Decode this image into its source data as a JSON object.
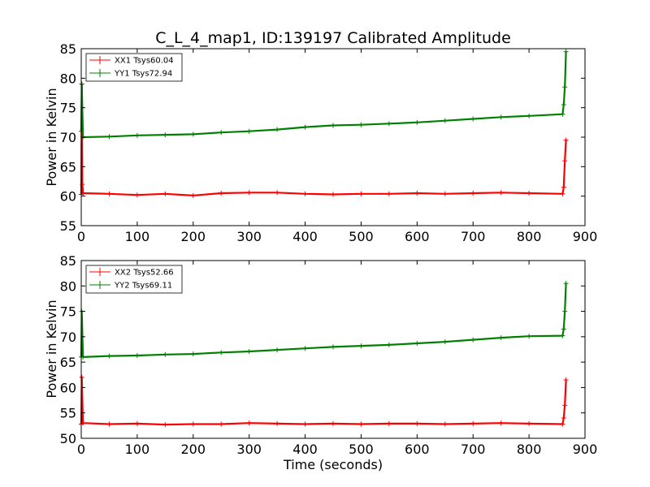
{
  "chart_data": [
    {
      "type": "line",
      "title": "C_L_4_map1, ID:139197 Calibrated Amplitude",
      "xlabel": "",
      "ylabel": "Power in Kelvin",
      "xlim": [
        0,
        900
      ],
      "ylim": [
        55,
        85
      ],
      "xticks": [
        "0",
        "100",
        "200",
        "300",
        "400",
        "500",
        "600",
        "700",
        "800",
        "900"
      ],
      "yticks": [
        "55",
        "60",
        "65",
        "70",
        "75",
        "80",
        "85"
      ],
      "legend": "top-left",
      "grid": false,
      "series": [
        {
          "name": "XX1 Tsys60.04",
          "color": "#ff0000",
          "points": [
            [
              0,
              60.3
            ],
            [
              1,
              79
            ],
            [
              2,
              62
            ],
            [
              3,
              60.5
            ],
            [
              50,
              60.4
            ],
            [
              100,
              60.2
            ],
            [
              150,
              60.4
            ],
            [
              200,
              60.1
            ],
            [
              250,
              60.5
            ],
            [
              300,
              60.6
            ],
            [
              350,
              60.6
            ],
            [
              400,
              60.4
            ],
            [
              450,
              60.3
            ],
            [
              500,
              60.4
            ],
            [
              550,
              60.4
            ],
            [
              600,
              60.5
            ],
            [
              650,
              60.4
            ],
            [
              700,
              60.5
            ],
            [
              750,
              60.6
            ],
            [
              800,
              60.5
            ],
            [
              860,
              60.4
            ],
            [
              862,
              61.5
            ],
            [
              864,
              66
            ],
            [
              866,
              69.5
            ]
          ]
        },
        {
          "name": "YY1 Tsys72.94",
          "color": "#008000",
          "points": [
            [
              0,
              71
            ],
            [
              1,
              79
            ],
            [
              3,
              70
            ],
            [
              50,
              70.1
            ],
            [
              100,
              70.3
            ],
            [
              150,
              70.4
            ],
            [
              200,
              70.5
            ],
            [
              250,
              70.8
            ],
            [
              300,
              71.0
            ],
            [
              350,
              71.3
            ],
            [
              400,
              71.7
            ],
            [
              450,
              72.0
            ],
            [
              500,
              72.1
            ],
            [
              550,
              72.3
            ],
            [
              600,
              72.5
            ],
            [
              650,
              72.8
            ],
            [
              700,
              73.1
            ],
            [
              750,
              73.4
            ],
            [
              800,
              73.6
            ],
            [
              860,
              73.9
            ],
            [
              862,
              75.5
            ],
            [
              864,
              78.5
            ],
            [
              866,
              84.5
            ]
          ]
        }
      ]
    },
    {
      "type": "line",
      "title": "",
      "xlabel": "Time (seconds)",
      "ylabel": "Power in Kelvin",
      "xlim": [
        0,
        900
      ],
      "ylim": [
        50,
        85
      ],
      "xticks": [
        "0",
        "100",
        "200",
        "300",
        "400",
        "500",
        "600",
        "700",
        "800",
        "900"
      ],
      "yticks": [
        "50",
        "55",
        "60",
        "65",
        "70",
        "75",
        "80",
        "85"
      ],
      "legend": "top-left",
      "grid": false,
      "series": [
        {
          "name": "XX2 Tsys52.66",
          "color": "#ff0000",
          "points": [
            [
              0,
              52.8
            ],
            [
              1,
              62
            ],
            [
              3,
              53
            ],
            [
              50,
              52.8
            ],
            [
              100,
              52.9
            ],
            [
              150,
              52.7
            ],
            [
              200,
              52.8
            ],
            [
              250,
              52.8
            ],
            [
              300,
              53.0
            ],
            [
              350,
              52.9
            ],
            [
              400,
              52.8
            ],
            [
              450,
              52.9
            ],
            [
              500,
              52.8
            ],
            [
              550,
              52.9
            ],
            [
              600,
              52.9
            ],
            [
              650,
              52.8
            ],
            [
              700,
              52.9
            ],
            [
              750,
              53.0
            ],
            [
              800,
              52.9
            ],
            [
              860,
              52.8
            ],
            [
              862,
              54
            ],
            [
              864,
              56.5
            ],
            [
              866,
              61.5
            ]
          ]
        },
        {
          "name": "YY2 Tsys69.11",
          "color": "#008000",
          "points": [
            [
              0,
              66
            ],
            [
              1,
              75
            ],
            [
              3,
              66
            ],
            [
              50,
              66.2
            ],
            [
              100,
              66.3
            ],
            [
              150,
              66.5
            ],
            [
              200,
              66.6
            ],
            [
              250,
              66.9
            ],
            [
              300,
              67.1
            ],
            [
              350,
              67.4
            ],
            [
              400,
              67.7
            ],
            [
              450,
              68.0
            ],
            [
              500,
              68.2
            ],
            [
              550,
              68.4
            ],
            [
              600,
              68.7
            ],
            [
              650,
              69.0
            ],
            [
              700,
              69.4
            ],
            [
              750,
              69.8
            ],
            [
              800,
              70.1
            ],
            [
              860,
              70.2
            ],
            [
              862,
              71.5
            ],
            [
              864,
              75
            ],
            [
              866,
              80.5
            ]
          ]
        }
      ]
    }
  ]
}
